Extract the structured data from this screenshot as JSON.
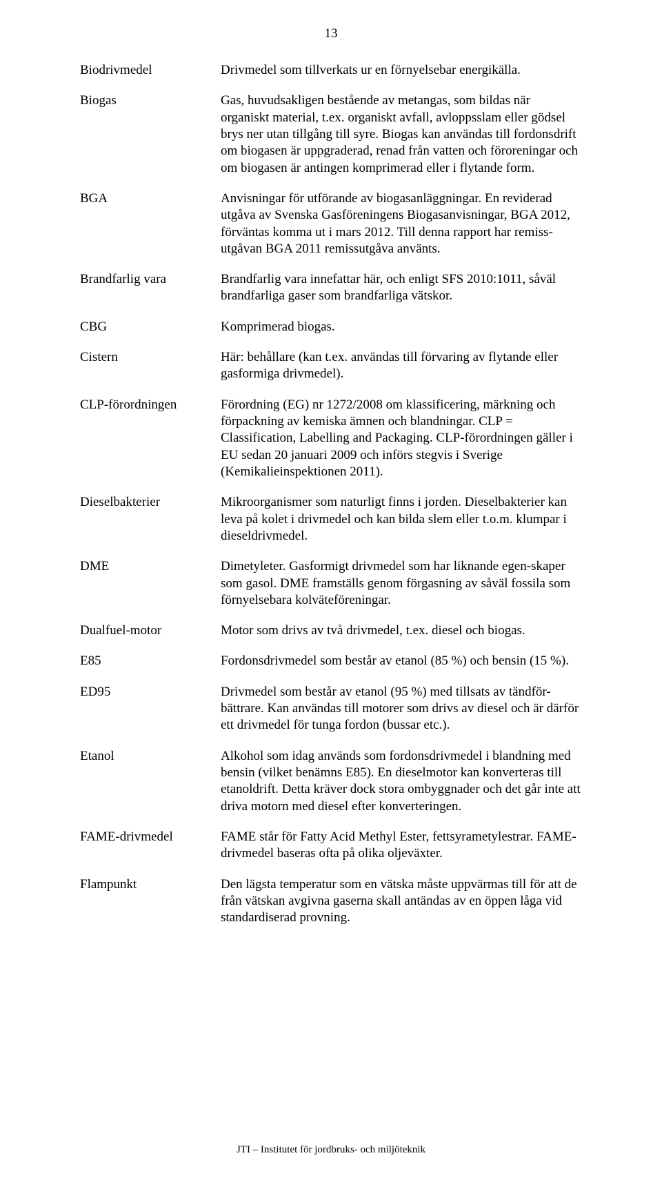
{
  "page_number": "13",
  "footer": "JTI – Institutet för jordbruks- och miljöteknik",
  "definitions": [
    {
      "term": "Biodrivmedel",
      "def": "Drivmedel som tillverkats ur en förnyelsebar energikälla."
    },
    {
      "term": "Biogas",
      "def": "Gas, huvudsakligen bestående av metangas, som bildas när organiskt material, t.ex. organiskt avfall, avloppsslam eller gödsel brys ner utan tillgång till syre. Biogas kan användas till fordonsdrift om biogasen är uppgraderad, renad från vatten och föroreningar och om biogasen är antingen komprimerad eller i flytande form."
    },
    {
      "term": "BGA",
      "def": "Anvisningar för utförande av biogasanläggningar. En reviderad utgåva av Svenska Gasföreningens Biogasanvisningar, BGA 2012, förväntas komma ut i mars 2012. Till denna rapport har remiss-utgåvan BGA 2011 remissutgåva använts."
    },
    {
      "term": "Brandfarlig vara",
      "def": "Brandfarlig vara innefattar här, och enligt SFS 2010:1011, såväl brandfarliga gaser som brandfarliga vätskor."
    },
    {
      "term": "CBG",
      "def": "Komprimerad biogas."
    },
    {
      "term": "Cistern",
      "def": "Här: behållare (kan t.ex. användas till förvaring av flytande eller gasformiga drivmedel)."
    },
    {
      "term": "CLP-förordningen",
      "def": "Förordning (EG) nr 1272/2008 om klassificering, märkning och förpackning av kemiska ämnen och blandningar. CLP = Classification, Labelling and Packaging. CLP-förordningen gäller i EU sedan 20 januari 2009 och införs stegvis i Sverige (Kemikalieinspektionen 2011)."
    },
    {
      "term": "Dieselbakterier",
      "def": "Mikroorganismer som naturligt finns i jorden. Dieselbakterier kan leva på kolet i drivmedel och kan bilda slem eller t.o.m. klumpar i dieseldrivmedel."
    },
    {
      "term": "DME",
      "def": "Dimetyleter. Gasformigt drivmedel som har liknande egen-skaper som gasol. DME framställs genom förgasning av såväl fossila som förnyelsebara kolväteföreningar."
    },
    {
      "term": "Dualfuel-motor",
      "def": "Motor som drivs av två drivmedel, t.ex. diesel och biogas."
    },
    {
      "term": "E85",
      "def": "Fordonsdrivmedel som består av etanol (85 %) och bensin (15 %)."
    },
    {
      "term": "ED95",
      "def": "Drivmedel som består av etanol (95 %) med tillsats av tändför-bättrare. Kan användas till motorer som drivs av diesel och är därför ett drivmedel för tunga fordon (bussar etc.)."
    },
    {
      "term": "Etanol",
      "def": "Alkohol som idag används som fordonsdrivmedel i blandning med bensin (vilket benämns E85). En dieselmotor kan konverteras till etanoldrift. Detta kräver dock stora ombyggnader och det går inte att driva motorn med diesel efter konverteringen."
    },
    {
      "term": "FAME-drivmedel",
      "def": "FAME står för Fatty Acid Methyl Ester, fettsyrametylestrar. FAME-drivmedel baseras ofta på olika oljeväxter."
    },
    {
      "term": "Flampunkt",
      "def": "Den lägsta temperatur som en vätska måste uppvärmas till för att de från vätskan avgivna gaserna skall antändas av en öppen låga vid standardiserad provning."
    }
  ]
}
